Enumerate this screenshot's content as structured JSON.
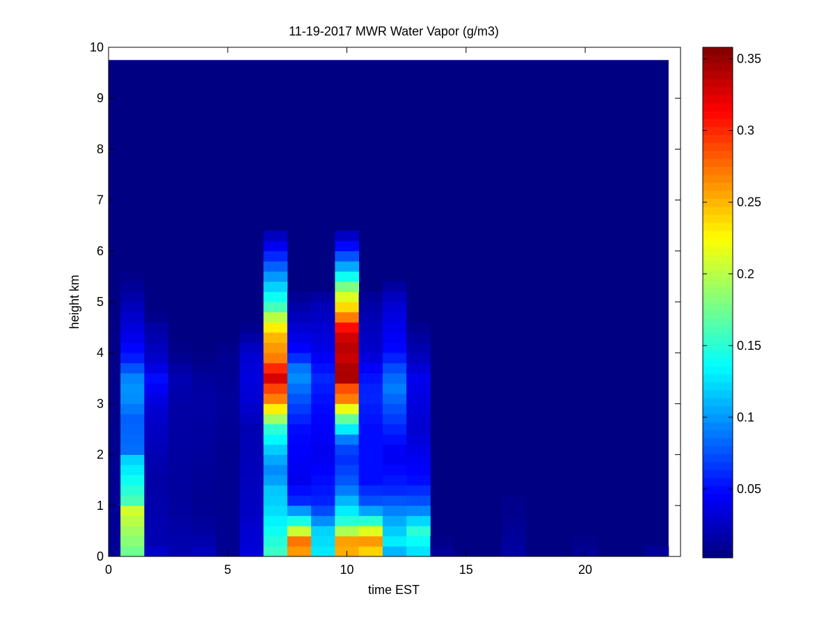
{
  "chart_data": {
    "type": "heatmap",
    "title": "11-19-2017 MWR Water Vapor (g/m3)",
    "xlabel": "time EST",
    "ylabel": "height km",
    "xlim": [
      0,
      24
    ],
    "ylim": [
      0,
      10
    ],
    "x_ticks": [
      0,
      5,
      10,
      15,
      20
    ],
    "x_tick_labels": [
      "0",
      "5",
      "10",
      "15",
      "20"
    ],
    "y_ticks": [
      0,
      1,
      2,
      3,
      4,
      5,
      6,
      7,
      8,
      9,
      10
    ],
    "y_tick_labels": [
      "0",
      "1",
      "2",
      "3",
      "4",
      "5",
      "6",
      "7",
      "8",
      "9",
      "10"
    ],
    "colormap": "jet",
    "clim": [
      0.002,
      0.358
    ],
    "colorbar_ticks": [
      0.05,
      0.1,
      0.15,
      0.2,
      0.25,
      0.3,
      0.35
    ],
    "colorbar_tick_labels": [
      "0.05",
      "0.1",
      "0.15",
      "0.2",
      "0.25",
      "0.3",
      "0.35"
    ],
    "background_value": 0.003,
    "data_extent": {
      "x": [
        0,
        23.5
      ],
      "y": [
        0,
        9.75
      ]
    },
    "time_bin_width_hours": 1,
    "time_bin_centers": [
      1,
      2,
      3,
      4,
      5,
      6,
      7,
      8,
      9,
      10,
      11,
      12,
      13,
      14,
      15,
      16,
      17,
      18,
      19,
      20,
      21,
      22,
      23
    ],
    "height_levels_km": [
      0.1,
      0.3,
      0.5,
      0.7,
      0.9,
      1.1,
      1.3,
      1.5,
      1.7,
      1.9,
      2.1,
      2.3,
      2.5,
      2.7,
      2.9,
      3.1,
      3.3,
      3.5,
      3.7,
      3.9,
      4.1,
      4.3,
      4.5,
      4.7,
      4.9,
      5.1,
      5.3,
      5.5,
      5.7,
      5.9,
      6.1,
      6.3
    ],
    "profiles": [
      {
        "time": 0.5,
        "points": [
          [
            0,
            0.01
          ],
          [
            6,
            0.003
          ]
        ]
      },
      {
        "time": 1,
        "points": [
          [
            0,
            0.17
          ],
          [
            0.7,
            0.2
          ],
          [
            0.9,
            0.21
          ],
          [
            1.1,
            0.16
          ],
          [
            1.5,
            0.14
          ],
          [
            1.9,
            0.12
          ],
          [
            2.1,
            0.085
          ],
          [
            2.7,
            0.08
          ],
          [
            3.2,
            0.1
          ],
          [
            3.6,
            0.09
          ],
          [
            3.8,
            0.06
          ],
          [
            4.3,
            0.04
          ],
          [
            5.0,
            0.02
          ],
          [
            5.4,
            0.008
          ],
          [
            5.6,
            0.003
          ]
        ]
      },
      {
        "time": 2,
        "points": [
          [
            0,
            0.03
          ],
          [
            0.3,
            0.02
          ],
          [
            1.5,
            0.015
          ],
          [
            2.9,
            0.03
          ],
          [
            3.5,
            0.05
          ],
          [
            3.8,
            0.03
          ],
          [
            4.5,
            0.015
          ],
          [
            4.8,
            0.003
          ]
        ]
      },
      {
        "time": 3,
        "points": [
          [
            0,
            0.02
          ],
          [
            1.0,
            0.012
          ],
          [
            3.0,
            0.015
          ],
          [
            3.5,
            0.02
          ],
          [
            4.0,
            0.006
          ],
          [
            4.3,
            0.003
          ]
        ]
      },
      {
        "time": 4,
        "points": [
          [
            0,
            0.025
          ],
          [
            0.4,
            0.015
          ],
          [
            1.0,
            0.008
          ],
          [
            3.0,
            0.015
          ],
          [
            3.5,
            0.012
          ],
          [
            4.0,
            0.003
          ]
        ]
      },
      {
        "time": 5,
        "points": [
          [
            0,
            0.008
          ],
          [
            2.0,
            0.008
          ],
          [
            3.0,
            0.012
          ],
          [
            4.0,
            0.008
          ],
          [
            4.3,
            0.003
          ]
        ]
      },
      {
        "time": 6,
        "points": [
          [
            0,
            0.035
          ],
          [
            1.0,
            0.025
          ],
          [
            2.5,
            0.02
          ],
          [
            3.0,
            0.03
          ],
          [
            3.5,
            0.035
          ],
          [
            4.0,
            0.03
          ],
          [
            4.6,
            0.003
          ]
        ]
      },
      {
        "time": 7,
        "points": [
          [
            0,
            0.16
          ],
          [
            0.5,
            0.14
          ],
          [
            1.0,
            0.12
          ],
          [
            1.4,
            0.115
          ],
          [
            1.6,
            0.09
          ],
          [
            2.0,
            0.11
          ],
          [
            2.5,
            0.15
          ],
          [
            2.8,
            0.21
          ],
          [
            3.1,
            0.27
          ],
          [
            3.4,
            0.3
          ],
          [
            3.55,
            0.34
          ],
          [
            3.7,
            0.3
          ],
          [
            3.9,
            0.27
          ],
          [
            4.3,
            0.25
          ],
          [
            4.6,
            0.22
          ],
          [
            4.9,
            0.16
          ],
          [
            5.3,
            0.12
          ],
          [
            5.7,
            0.08
          ],
          [
            6.0,
            0.05
          ],
          [
            6.35,
            0.02
          ],
          [
            6.5,
            0.003
          ]
        ]
      },
      {
        "time": 8,
        "points": [
          [
            0,
            0.2
          ],
          [
            0.15,
            0.29
          ],
          [
            0.4,
            0.26
          ],
          [
            0.55,
            0.18
          ],
          [
            0.8,
            0.12
          ],
          [
            1.1,
            0.06
          ],
          [
            1.5,
            0.04
          ],
          [
            2.5,
            0.05
          ],
          [
            3.2,
            0.08
          ],
          [
            3.6,
            0.1
          ],
          [
            4.0,
            0.05
          ],
          [
            4.5,
            0.03
          ],
          [
            5.3,
            0.003
          ]
        ]
      },
      {
        "time": 9,
        "points": [
          [
            0,
            0.13
          ],
          [
            0.5,
            0.12
          ],
          [
            1.0,
            0.06
          ],
          [
            2.0,
            0.04
          ],
          [
            3.0,
            0.05
          ],
          [
            3.5,
            0.06
          ],
          [
            4.0,
            0.04
          ],
          [
            5.0,
            0.02
          ],
          [
            5.3,
            0.003
          ]
        ]
      },
      {
        "time": 10,
        "points": [
          [
            0,
            0.2
          ],
          [
            0.15,
            0.28
          ],
          [
            0.35,
            0.25
          ],
          [
            0.6,
            0.16
          ],
          [
            1.0,
            0.12
          ],
          [
            1.4,
            0.08
          ],
          [
            2.0,
            0.06
          ],
          [
            2.3,
            0.09
          ],
          [
            2.8,
            0.19
          ],
          [
            3.1,
            0.27
          ],
          [
            3.35,
            0.29
          ],
          [
            3.55,
            0.36
          ],
          [
            3.8,
            0.33
          ],
          [
            4.2,
            0.34
          ],
          [
            4.5,
            0.31
          ],
          [
            4.8,
            0.25
          ],
          [
            5.2,
            0.2
          ],
          [
            5.6,
            0.12
          ],
          [
            6.0,
            0.06
          ],
          [
            6.35,
            0.02
          ],
          [
            6.5,
            0.003
          ]
        ]
      },
      {
        "time": 11,
        "points": [
          [
            0,
            0.2
          ],
          [
            0.2,
            0.28
          ],
          [
            0.45,
            0.23
          ],
          [
            0.7,
            0.15
          ],
          [
            1.0,
            0.08
          ],
          [
            1.5,
            0.05
          ],
          [
            2.5,
            0.05
          ],
          [
            3.2,
            0.06
          ],
          [
            3.6,
            0.05
          ],
          [
            4.0,
            0.03
          ],
          [
            5.0,
            0.015
          ],
          [
            5.3,
            0.003
          ]
        ]
      },
      {
        "time": 12,
        "points": [
          [
            0,
            0.1
          ],
          [
            0.3,
            0.13
          ],
          [
            0.8,
            0.1
          ],
          [
            1.3,
            0.06
          ],
          [
            2.0,
            0.04
          ],
          [
            2.8,
            0.07
          ],
          [
            3.3,
            0.09
          ],
          [
            3.6,
            0.08
          ],
          [
            4.0,
            0.05
          ],
          [
            5.0,
            0.03
          ],
          [
            5.5,
            0.003
          ]
        ]
      },
      {
        "time": 13,
        "points": [
          [
            0,
            0.12
          ],
          [
            0.5,
            0.15
          ],
          [
            1.0,
            0.08
          ],
          [
            1.5,
            0.05
          ],
          [
            2.5,
            0.03
          ],
          [
            3.5,
            0.04
          ],
          [
            4.0,
            0.02
          ],
          [
            4.5,
            0.008
          ],
          [
            4.7,
            0.003
          ]
        ]
      },
      {
        "time": 14,
        "points": [
          [
            0,
            0.012
          ],
          [
            0.4,
            0.003
          ]
        ]
      },
      {
        "time": 17,
        "points": [
          [
            0,
            0.015
          ],
          [
            0.7,
            0.008
          ],
          [
            1.5,
            0.003
          ]
        ]
      },
      {
        "time": 20,
        "points": [
          [
            0,
            0.012
          ],
          [
            0.4,
            0.003
          ]
        ]
      },
      {
        "time": 23,
        "points": [
          [
            0,
            0.015
          ],
          [
            0.3,
            0.003
          ]
        ]
      }
    ]
  }
}
